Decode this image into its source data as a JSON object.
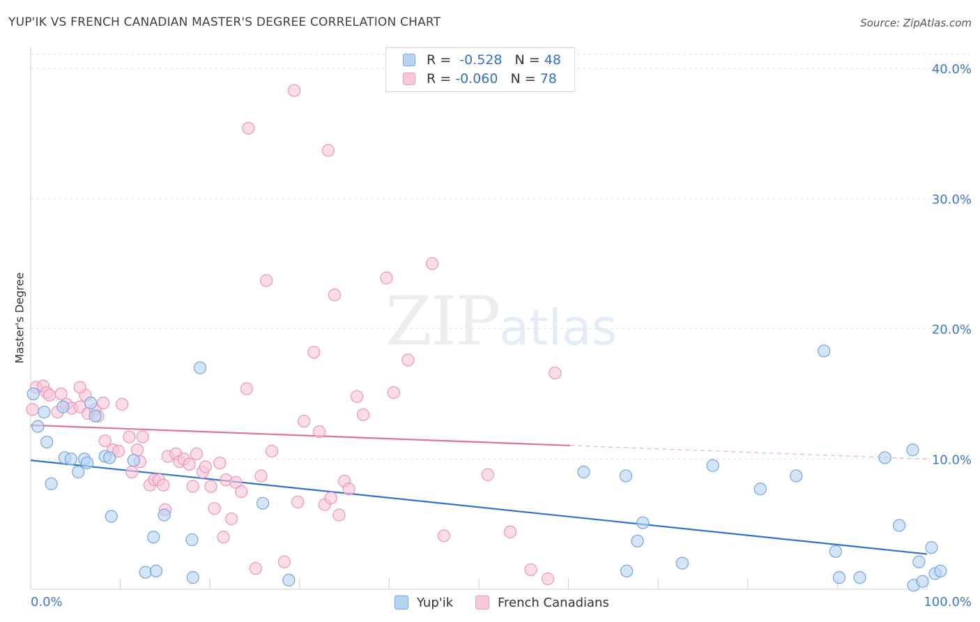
{
  "title": "YUP'IK VS FRENCH CANADIAN MASTER'S DEGREE CORRELATION CHART",
  "source": "Source: ZipAtlas.com",
  "watermark": {
    "zip": "ZIP",
    "atlas": "atlas"
  },
  "legend": {
    "rows": [
      {
        "r_label": "R =",
        "r_value": "-0.528",
        "n_label": "N =",
        "n_value": "48"
      },
      {
        "r_label": "R =",
        "r_value": "-0.060",
        "n_label": "N =",
        "n_value": "78"
      }
    ]
  },
  "chart_data": {
    "type": "scatter",
    "title": "YUP'IK VS FRENCH CANADIAN MASTER'S DEGREE CORRELATION CHART",
    "xlabel": "",
    "ylabel": "Master's Degree",
    "xlim": [
      0,
      100
    ],
    "ylim": [
      0,
      41.5
    ],
    "x_tick_labels": [
      "0.0%",
      "100.0%"
    ],
    "y_ticks": [
      10,
      20,
      30,
      40
    ],
    "y_tick_labels": [
      "10.0%",
      "20.0%",
      "30.0%",
      "40.0%"
    ],
    "grid": true,
    "legend_position": "bottom-center",
    "series": [
      {
        "name": "Yup'ik",
        "color": "#7aaae6",
        "fill": "#b8d3f3",
        "line_color": "#2f6fcf",
        "r": -0.528,
        "n": 48,
        "trend": {
          "x0": 0,
          "y0": 9.9,
          "x1": 100,
          "y1": 2.7,
          "solid_until": 100
        },
        "points": [
          [
            0.3,
            15.0
          ],
          [
            1.5,
            13.6
          ],
          [
            0.8,
            12.5
          ],
          [
            1.8,
            11.3
          ],
          [
            3.6,
            14.0
          ],
          [
            3.8,
            10.1
          ],
          [
            4.5,
            10.0
          ],
          [
            6.0,
            10.0
          ],
          [
            6.3,
            9.7
          ],
          [
            2.3,
            8.1
          ],
          [
            5.3,
            9.0
          ],
          [
            7.2,
            13.3
          ],
          [
            6.7,
            14.3
          ],
          [
            8.3,
            10.2
          ],
          [
            8.8,
            10.1
          ],
          [
            9.0,
            5.6
          ],
          [
            11.5,
            9.9
          ],
          [
            12.8,
            1.3
          ],
          [
            13.7,
            4.0
          ],
          [
            14.9,
            5.7
          ],
          [
            14.0,
            1.4
          ],
          [
            18.0,
            3.8
          ],
          [
            18.9,
            17.0
          ],
          [
            18.1,
            0.9
          ],
          [
            25.9,
            6.6
          ],
          [
            28.8,
            0.7
          ],
          [
            66.4,
            8.7
          ],
          [
            61.7,
            9.0
          ],
          [
            68.3,
            5.1
          ],
          [
            67.7,
            3.7
          ],
          [
            66.5,
            1.4
          ],
          [
            72.7,
            2.0
          ],
          [
            76.1,
            9.5
          ],
          [
            81.4,
            7.7
          ],
          [
            85.4,
            8.7
          ],
          [
            88.5,
            18.3
          ],
          [
            89.8,
            2.9
          ],
          [
            90.2,
            0.9
          ],
          [
            92.5,
            0.9
          ],
          [
            95.3,
            10.1
          ],
          [
            96.9,
            4.9
          ],
          [
            98.5,
            0.3
          ],
          [
            99.5,
            0.6
          ],
          [
            98.4,
            10.7
          ],
          [
            99.1,
            2.1
          ],
          [
            100.5,
            3.2
          ],
          [
            100.9,
            1.2
          ],
          [
            101.5,
            1.4
          ]
        ]
      },
      {
        "name": "French Canadians",
        "color": "#ef9ab9",
        "fill": "#f8c7d8",
        "line_color": "#e0709a",
        "r": -0.06,
        "n": 78,
        "trend": {
          "x0": 0,
          "y0": 12.6,
          "x1": 100,
          "y1": 10.0,
          "solid_until": 60.2
        },
        "points": [
          [
            0.2,
            13.8
          ],
          [
            0.6,
            15.5
          ],
          [
            1.4,
            15.6
          ],
          [
            1.8,
            15.1
          ],
          [
            2.1,
            14.9
          ],
          [
            3.0,
            13.6
          ],
          [
            3.4,
            15.0
          ],
          [
            4.0,
            14.2
          ],
          [
            4.6,
            13.9
          ],
          [
            5.5,
            14.0
          ],
          [
            6.1,
            14.9
          ],
          [
            5.5,
            15.5
          ],
          [
            6.4,
            13.5
          ],
          [
            7.2,
            13.8
          ],
          [
            7.5,
            13.3
          ],
          [
            8.1,
            14.3
          ],
          [
            8.3,
            11.4
          ],
          [
            9.2,
            10.7
          ],
          [
            9.8,
            10.6
          ],
          [
            10.2,
            14.2
          ],
          [
            11.0,
            11.7
          ],
          [
            12.5,
            11.7
          ],
          [
            11.9,
            10.7
          ],
          [
            11.3,
            9.0
          ],
          [
            12.2,
            9.8
          ],
          [
            13.3,
            8.0
          ],
          [
            13.8,
            8.4
          ],
          [
            14.3,
            8.4
          ],
          [
            14.8,
            8.0
          ],
          [
            15.0,
            6.1
          ],
          [
            15.3,
            10.2
          ],
          [
            16.2,
            10.4
          ],
          [
            16.6,
            9.8
          ],
          [
            17.1,
            10.0
          ],
          [
            17.7,
            9.6
          ],
          [
            18.1,
            7.9
          ],
          [
            18.5,
            10.4
          ],
          [
            19.2,
            9.0
          ],
          [
            19.5,
            9.4
          ],
          [
            20.1,
            7.9
          ],
          [
            20.5,
            6.2
          ],
          [
            21.1,
            9.7
          ],
          [
            21.5,
            4.0
          ],
          [
            21.8,
            8.4
          ],
          [
            22.4,
            5.4
          ],
          [
            22.9,
            8.2
          ],
          [
            23.5,
            7.5
          ],
          [
            24.1,
            15.4
          ],
          [
            25.1,
            1.6
          ],
          [
            25.7,
            8.7
          ],
          [
            26.3,
            23.7
          ],
          [
            26.9,
            10.6
          ],
          [
            28.3,
            2.1
          ],
          [
            29.4,
            38.3
          ],
          [
            29.8,
            6.7
          ],
          [
            30.5,
            12.9
          ],
          [
            31.6,
            18.2
          ],
          [
            32.2,
            12.1
          ],
          [
            32.8,
            6.5
          ],
          [
            33.5,
            7.0
          ],
          [
            33.2,
            33.7
          ],
          [
            33.9,
            22.6
          ],
          [
            34.4,
            5.7
          ],
          [
            35.0,
            8.3
          ],
          [
            35.5,
            7.7
          ],
          [
            36.4,
            14.8
          ],
          [
            37.1,
            13.4
          ],
          [
            39.7,
            23.9
          ],
          [
            40.5,
            15.1
          ],
          [
            42.1,
            17.6
          ],
          [
            44.8,
            25.0
          ],
          [
            46.1,
            4.1
          ],
          [
            51.0,
            8.8
          ],
          [
            53.5,
            4.4
          ],
          [
            55.8,
            1.5
          ],
          [
            57.7,
            0.8
          ],
          [
            58.5,
            16.6
          ],
          [
            24.3,
            35.4
          ]
        ]
      }
    ]
  }
}
